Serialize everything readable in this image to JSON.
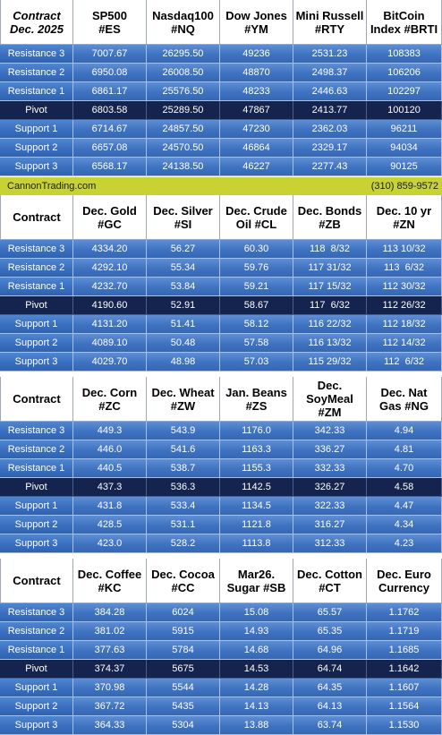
{
  "banner": {
    "left": "CannonTrading.com",
    "right": "(310) 859-9572"
  },
  "row_labels": [
    "Resistance 3",
    "Resistance 2",
    "Resistance 1",
    "Pivot",
    "Support 1",
    "Support 2",
    "Support 3"
  ],
  "tables": [
    {
      "headers": [
        "Contract\nDec. 2025",
        "SP500\n#ES",
        "Nasdaq100\n#NQ",
        "Dow Jones\n#YM",
        "Mini Russell\n#RTY",
        "BitCoin\nIndex #BRTI"
      ],
      "rows": [
        [
          "7007.67",
          "26295.50",
          "49236",
          "2531.23",
          "108383"
        ],
        [
          "6950.08",
          "26008.50",
          "48870",
          "2498.37",
          "106206"
        ],
        [
          "6861.17",
          "25576.50",
          "48233",
          "2446.63",
          "102297"
        ],
        [
          "6803.58",
          "25289.50",
          "47867",
          "2413.77",
          "100120"
        ],
        [
          "6714.67",
          "24857.50",
          "47230",
          "2362.03",
          "96211"
        ],
        [
          "6657.08",
          "24570.50",
          "46864",
          "2329.17",
          "94034"
        ],
        [
          "6568.17",
          "24138.50",
          "46227",
          "2277.43",
          "90125"
        ]
      ]
    },
    {
      "headers": [
        "Contract",
        "Dec. Gold\n#GC",
        "Dec. Silver\n#SI",
        "Dec. Crude\nOil #CL",
        "Dec. Bonds\n#ZB",
        "Dec. 10 yr\n#ZN"
      ],
      "rows": [
        [
          "4334.20",
          "56.27",
          "60.30",
          "118  8/32",
          "113 10/32"
        ],
        [
          "4292.10",
          "55.34",
          "59.76",
          "117 31/32",
          "113  6/32"
        ],
        [
          "4232.70",
          "53.84",
          "59.21",
          "117 15/32",
          "112 30/32"
        ],
        [
          "4190.60",
          "52.91",
          "58.67",
          "117  6/32",
          "112 26/32"
        ],
        [
          "4131.20",
          "51.41",
          "58.12",
          "116 22/32",
          "112 18/32"
        ],
        [
          "4089.10",
          "50.48",
          "57.58",
          "116 13/32",
          "112 14/32"
        ],
        [
          "4029.70",
          "48.98",
          "57.03",
          "115 29/32",
          "112  6/32"
        ]
      ]
    },
    {
      "headers": [
        "Contract",
        "Dec. Corn\n#ZC",
        "Dec.  Wheat\n#ZW",
        "Jan. Beans\n#ZS",
        "Dec.\nSoyMeal\n#ZM",
        "Dec. Nat\nGas #NG"
      ],
      "rows": [
        [
          "449.3",
          "543.9",
          "1176.0",
          "342.33",
          "4.94"
        ],
        [
          "446.0",
          "541.6",
          "1163.3",
          "336.27",
          "4.81"
        ],
        [
          "440.5",
          "538.7",
          "1155.3",
          "332.33",
          "4.70"
        ],
        [
          "437.3",
          "536.3",
          "1142.5",
          "326.27",
          "4.58"
        ],
        [
          "431.8",
          "533.4",
          "1134.5",
          "322.33",
          "4.47"
        ],
        [
          "428.5",
          "531.1",
          "1121.8",
          "316.27",
          "4.34"
        ],
        [
          "423.0",
          "528.2",
          "1113.8",
          "312.33",
          "4.23"
        ]
      ]
    },
    {
      "headers": [
        "Contract",
        "Dec. Coffee\n#KC",
        "Dec. Cocoa\n#CC",
        "Mar26.\nSugar #SB",
        "Dec. Cotton\n#CT",
        "Dec. Euro\nCurrency"
      ],
      "rows": [
        [
          "384.28",
          "6024",
          "15.08",
          "65.57",
          "1.1762"
        ],
        [
          "381.02",
          "5915",
          "14.93",
          "65.35",
          "1.1719"
        ],
        [
          "377.63",
          "5784",
          "14.68",
          "64.96",
          "1.1685"
        ],
        [
          "374.37",
          "5675",
          "14.53",
          "64.74",
          "1.1642"
        ],
        [
          "370.98",
          "5544",
          "14.28",
          "64.35",
          "1.1607"
        ],
        [
          "367.72",
          "5435",
          "14.13",
          "64.13",
          "1.1564"
        ],
        [
          "364.33",
          "5304",
          "13.88",
          "63.74",
          "1.1530"
        ]
      ]
    }
  ]
}
